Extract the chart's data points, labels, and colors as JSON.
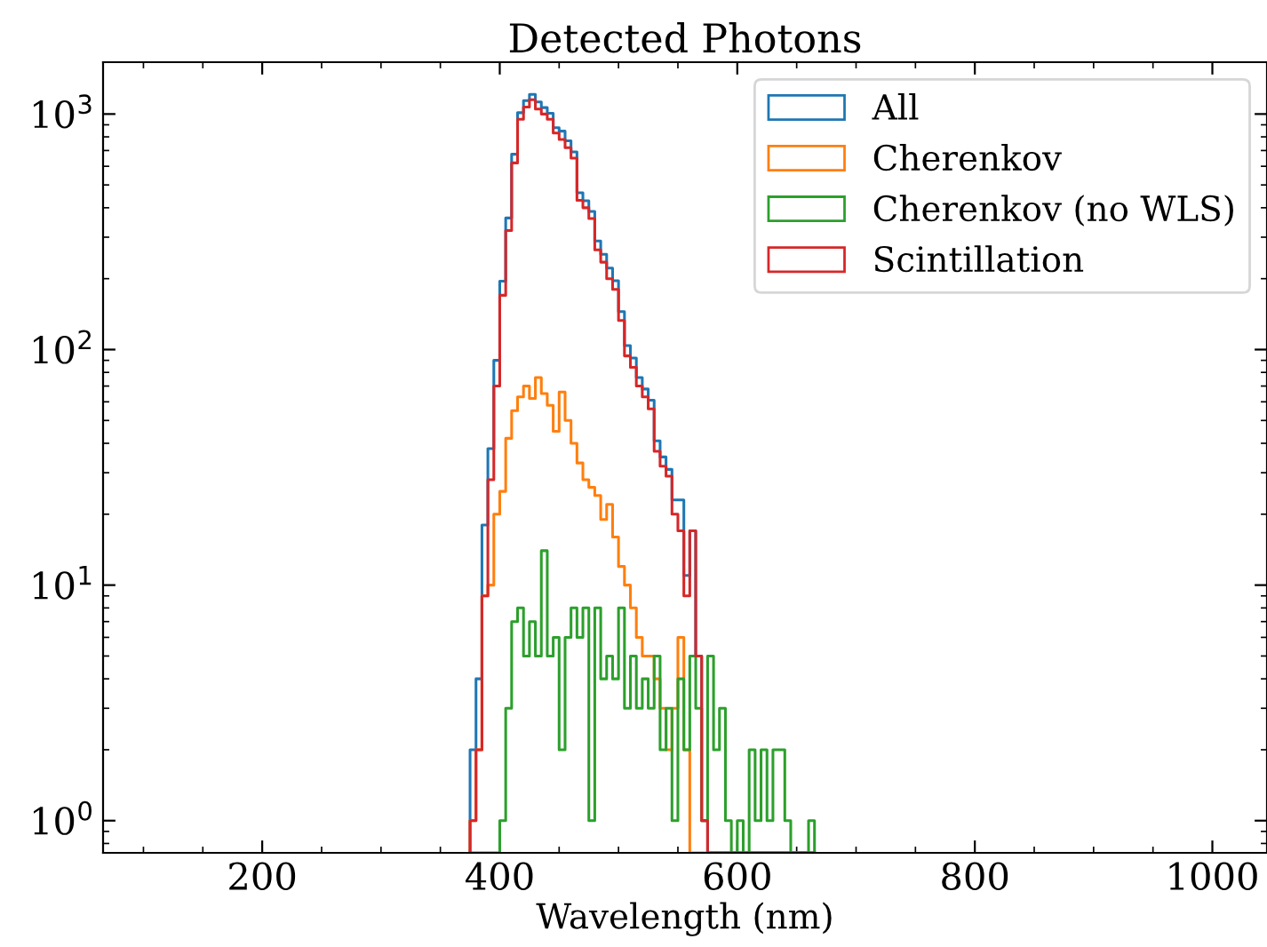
{
  "chart_data": {
    "type": "histogram",
    "title": "Detected Photons",
    "xlabel": "Wavelength (nm)",
    "bins": [
      375,
      380,
      385,
      390,
      395,
      400,
      405,
      410,
      415,
      420,
      425,
      430,
      435,
      440,
      445,
      450,
      455,
      460,
      465,
      470,
      475,
      480,
      485,
      490,
      495,
      500,
      505,
      510,
      515,
      520,
      525,
      530,
      535,
      540,
      545,
      550,
      555,
      560,
      565,
      570,
      575,
      580,
      585,
      590,
      595,
      600,
      605,
      610,
      615,
      620,
      625,
      630,
      635,
      640,
      645,
      650,
      655,
      660,
      665
    ],
    "series": [
      {
        "name": "All",
        "color": "#1f77b4",
        "values": [
          2,
          4,
          18,
          38,
          90,
          195,
          362,
          675,
          1013,
          1140,
          1212,
          1126,
          1065,
          1008,
          875,
          846,
          770,
          690,
          463,
          428,
          386,
          289,
          254,
          222,
          196,
          145,
          104,
          92,
          76,
          68,
          61,
          41,
          35,
          31,
          23,
          23,
          11,
          17,
          5,
          1,
          null,
          null,
          null,
          null,
          null,
          null,
          null,
          null,
          null,
          null,
          null,
          null,
          null,
          null,
          null,
          null,
          null,
          null
        ]
      },
      {
        "name": "Cherenkov",
        "color": "#ff7f0e",
        "values": [
          1,
          2,
          9,
          10,
          20,
          25,
          42,
          55,
          63,
          70,
          62,
          76,
          65,
          58,
          45,
          66,
          50,
          40,
          33,
          28,
          26,
          24,
          19,
          22,
          16,
          12,
          10,
          8,
          6,
          5,
          5,
          4,
          3,
          2,
          3,
          6,
          2,
          null,
          null,
          null,
          null,
          null,
          null,
          null,
          null,
          null,
          null,
          null,
          null,
          null,
          null,
          null,
          null,
          null,
          null,
          null,
          null,
          null
        ]
      },
      {
        "name": "Cherenkov (no WLS)",
        "color": "#2ca02c",
        "values": [
          null,
          null,
          null,
          null,
          null,
          1,
          3,
          7,
          8,
          5,
          7,
          5,
          14,
          5,
          6,
          2,
          6,
          8,
          6,
          8,
          1,
          8,
          4,
          5,
          4,
          8,
          3,
          5,
          3,
          4,
          3,
          5,
          2,
          3,
          1,
          4,
          2,
          5,
          3,
          1,
          5,
          2,
          3,
          1,
          null,
          1,
          null,
          2,
          1,
          2,
          1,
          2,
          2,
          1,
          null,
          null,
          null,
          1
        ]
      },
      {
        "name": "Scintillation",
        "color": "#d62728",
        "values": [
          1,
          2,
          9,
          28,
          70,
          170,
          320,
          620,
          950,
          1070,
          1150,
          1050,
          1000,
          950,
          830,
          780,
          720,
          650,
          430,
          400,
          360,
          265,
          235,
          200,
          180,
          133,
          94,
          84,
          70,
          63,
          56,
          37,
          32,
          29,
          20,
          17,
          9,
          17,
          5,
          1,
          null,
          null,
          null,
          null,
          null,
          null,
          null,
          null,
          null,
          null,
          null,
          null,
          null,
          null,
          null,
          null,
          null,
          null
        ]
      }
    ],
    "log": "y",
    "xlim": [
      66,
      1046
    ],
    "ylim": [
      0.73,
      1660
    ],
    "xticks": [
      200,
      400,
      600,
      800,
      1000
    ],
    "yticks": [
      {
        "value": 1,
        "label": "10$^{0}$"
      },
      {
        "value": 10,
        "label": "10$^{1}$"
      },
      {
        "value": 100,
        "label": "10$^{2}$"
      },
      {
        "value": 1000,
        "label": "10$^{3}$"
      }
    ],
    "grid": false,
    "legend": "top right"
  }
}
